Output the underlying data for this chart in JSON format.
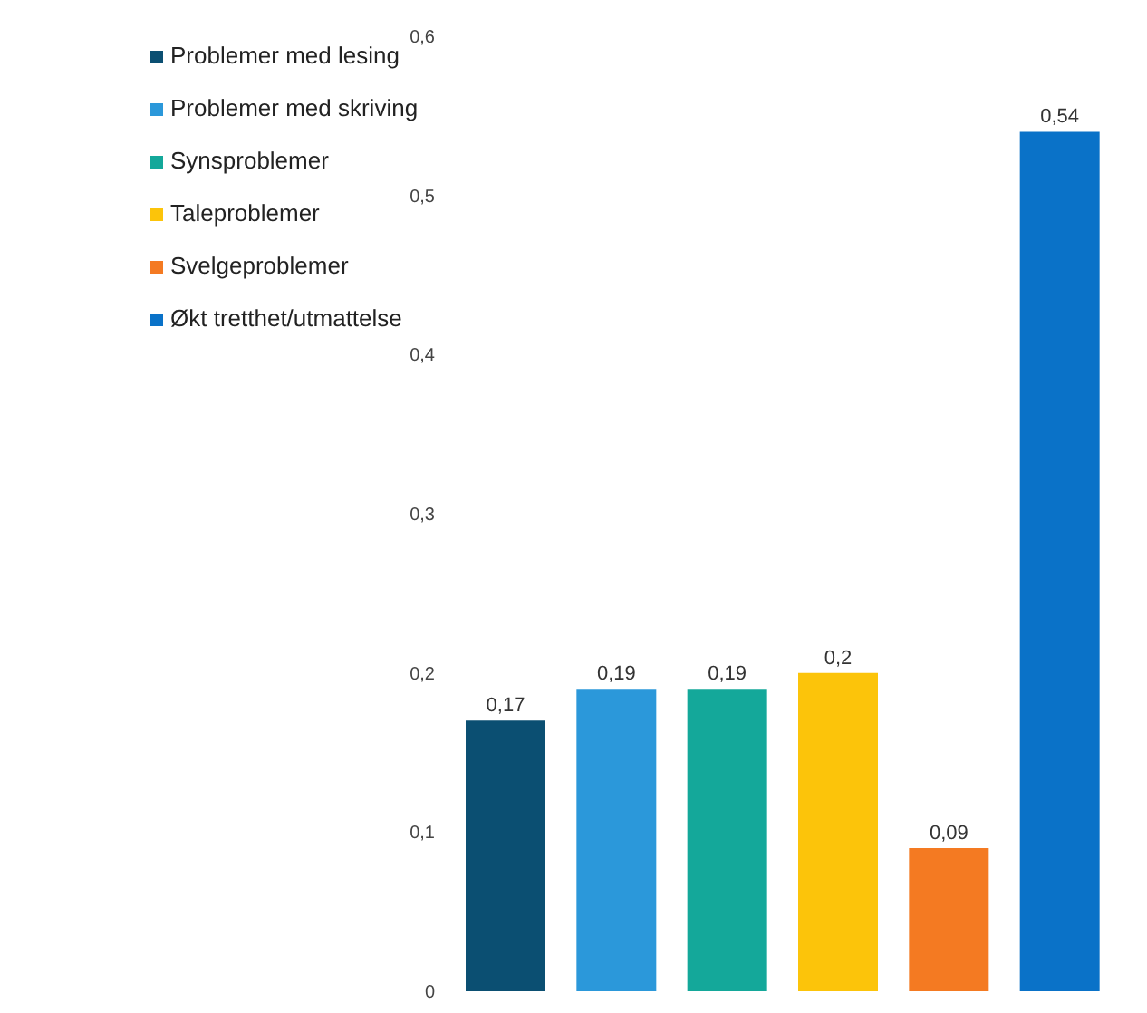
{
  "chart_data": {
    "type": "bar",
    "categories": [
      null,
      null,
      null,
      null,
      null,
      null
    ],
    "series": [
      {
        "name": "Problemer med lesing",
        "color": "#0b4f72",
        "values": [
          0.17,
          null,
          null,
          null,
          null,
          null
        ],
        "value_labels": [
          "0,17",
          null,
          null,
          null,
          null,
          null
        ]
      },
      {
        "name": "Problemer med skriving",
        "color": "#2b98da",
        "values": [
          null,
          0.19,
          null,
          null,
          null,
          null
        ],
        "value_labels": [
          null,
          "0,19",
          null,
          null,
          null,
          null
        ]
      },
      {
        "name": "Synsproblemer",
        "color": "#14a89a",
        "values": [
          null,
          null,
          0.19,
          null,
          null,
          null
        ],
        "value_labels": [
          null,
          null,
          "0,19",
          null,
          null,
          null
        ]
      },
      {
        "name": "Taleproblemer",
        "color": "#fcc40a",
        "values": [
          null,
          null,
          null,
          0.2,
          null,
          null
        ],
        "value_labels": [
          null,
          null,
          null,
          "0,2",
          null,
          null
        ]
      },
      {
        "name": "Svelgeproblemer",
        "color": "#f47a22",
        "values": [
          null,
          null,
          null,
          null,
          0.09,
          null
        ],
        "value_labels": [
          null,
          null,
          null,
          null,
          "0,09",
          null
        ]
      },
      {
        "name": "Økt tretthet/utmattelse",
        "color": "#0a72c8",
        "values": [
          null,
          null,
          null,
          null,
          null,
          0.54
        ],
        "value_labels": [
          null,
          null,
          null,
          null,
          null,
          "0,54"
        ]
      }
    ],
    "stacked": true,
    "ylim": [
      0,
      0.6
    ],
    "yticks": [
      {
        "value": 0,
        "label": "0"
      },
      {
        "value": 0.1,
        "label": "0,1"
      },
      {
        "value": 0.2,
        "label": "0,2"
      },
      {
        "value": 0.3,
        "label": "0,3"
      },
      {
        "value": 0.4,
        "label": "0,4"
      },
      {
        "value": 0.5,
        "label": "0,5"
      },
      {
        "value": 0.6,
        "label": "0,6"
      }
    ],
    "tick_labels": "y",
    "legend": "top left"
  }
}
